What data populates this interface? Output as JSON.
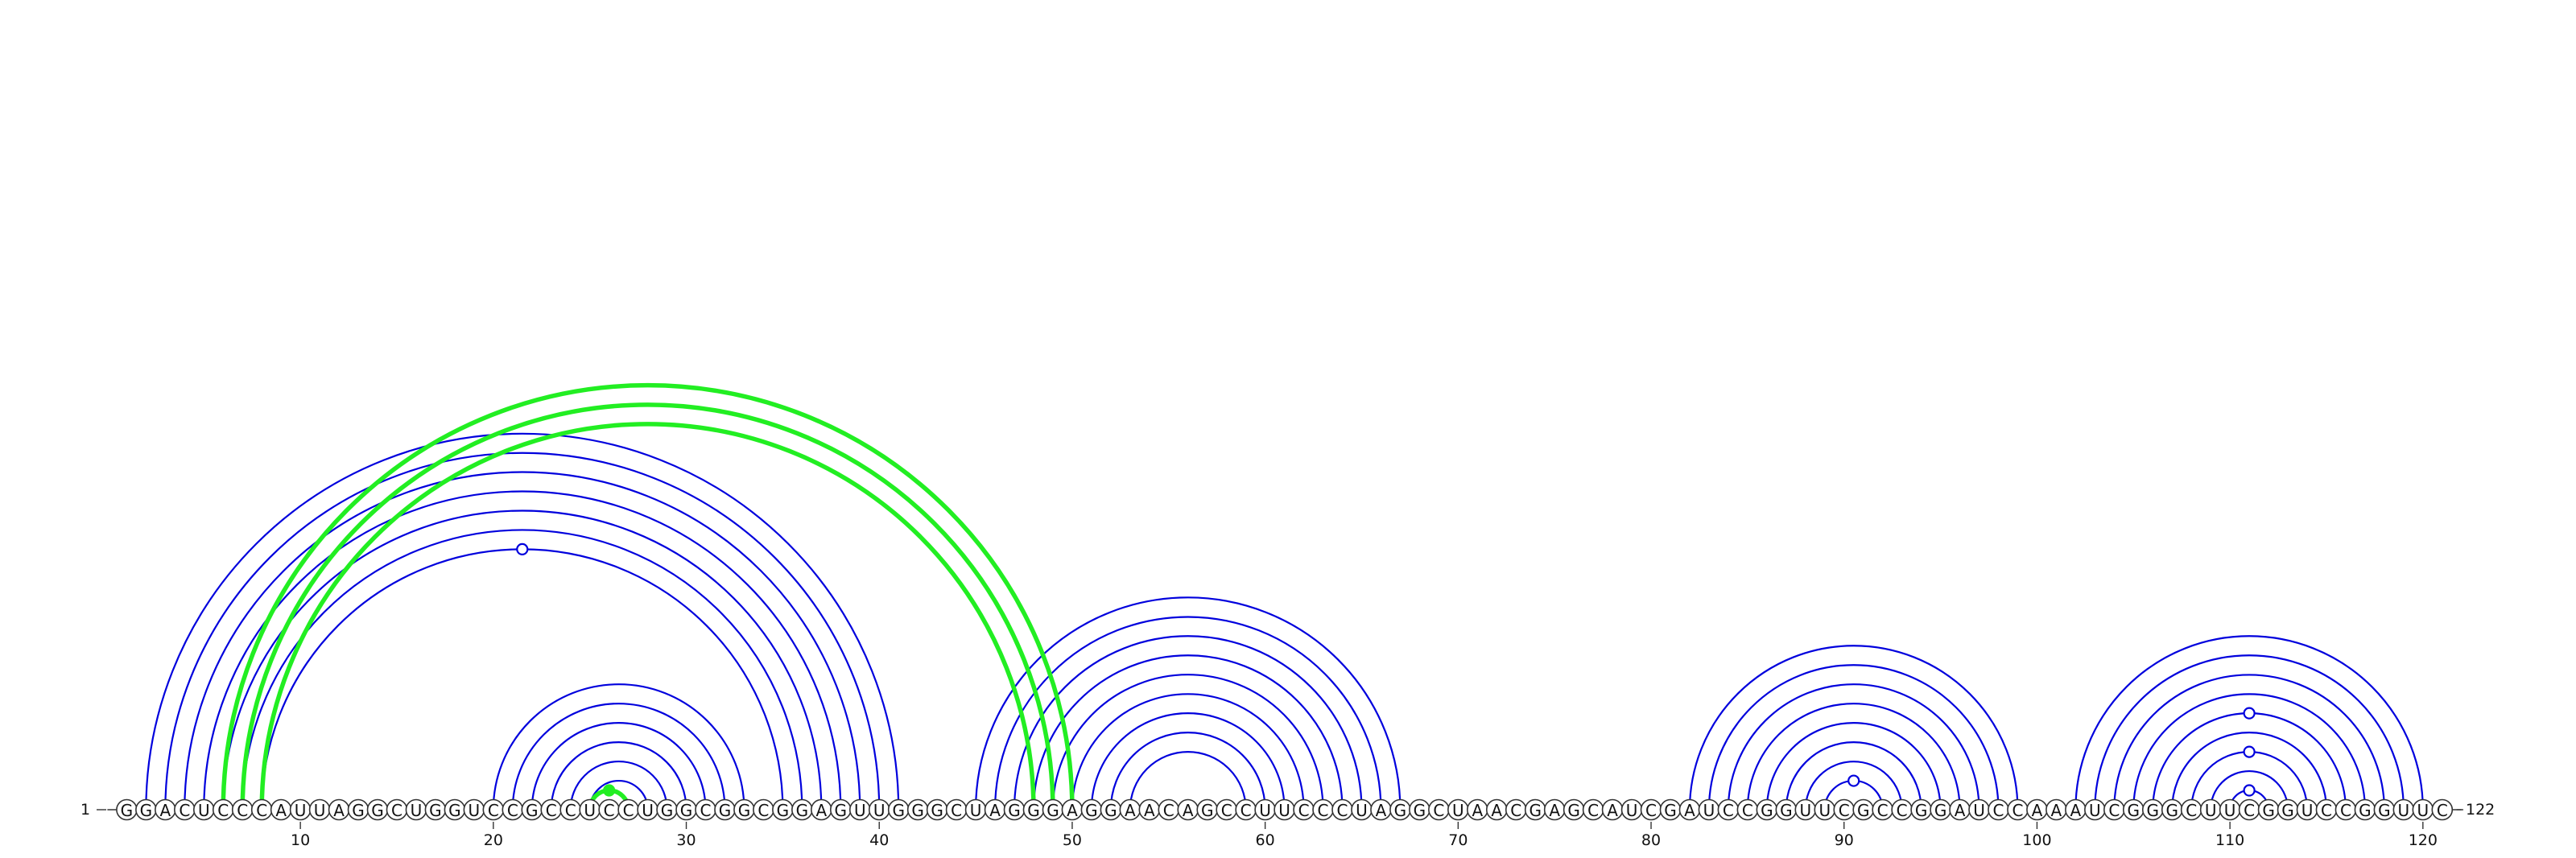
{
  "sequence": "GGACUCCCAUUAGGCUGGUCCGCCUCCUGGCGGCGGAGUUGGGCUAGGGAGGAACAGCCUUCCCUAGGCUAACGAGCAUCGAUCCGGUUCGCCGGAUCCAAAUCGGGCUUCGGUCCGGUUC",
  "start_label": "1",
  "end_label": "122",
  "position_labels": [
    "10",
    "20",
    "30",
    "40",
    "50",
    "60",
    "70",
    "80",
    "90",
    "100",
    "110",
    "120"
  ],
  "colors": {
    "base_pair_arc": "#0000dd",
    "pseudoknot_arc": "#22ee22",
    "circle_stroke": "#333333"
  },
  "base_pairs": [
    [
      2,
      41
    ],
    [
      3,
      40
    ],
    [
      4,
      39
    ],
    [
      5,
      38
    ],
    [
      6,
      37
    ],
    [
      7,
      36
    ],
    [
      8,
      35
    ],
    [
      20,
      33
    ],
    [
      21,
      32
    ],
    [
      22,
      31
    ],
    [
      23,
      30
    ],
    [
      24,
      29
    ],
    [
      25,
      28
    ],
    [
      45,
      67
    ],
    [
      46,
      66
    ],
    [
      47,
      65
    ],
    [
      48,
      64
    ],
    [
      49,
      63
    ],
    [
      50,
      62
    ],
    [
      51,
      61
    ],
    [
      52,
      60
    ],
    [
      53,
      59
    ],
    [
      82,
      99
    ],
    [
      83,
      98
    ],
    [
      84,
      97
    ],
    [
      85,
      96
    ],
    [
      86,
      95
    ],
    [
      87,
      94
    ],
    [
      88,
      93
    ],
    [
      89,
      92
    ],
    [
      102,
      120
    ],
    [
      103,
      119
    ],
    [
      104,
      118
    ],
    [
      105,
      117
    ],
    [
      106,
      116
    ],
    [
      107,
      115
    ],
    [
      108,
      114
    ],
    [
      109,
      113
    ],
    [
      110,
      112
    ]
  ],
  "pseudoknot_pairs": [
    [
      6,
      50
    ],
    [
      7,
      49
    ],
    [
      8,
      48
    ],
    [
      25,
      27
    ]
  ],
  "markers": [
    {
      "i": 8,
      "j": 35,
      "filled": false
    },
    {
      "i": 89,
      "j": 92,
      "filled": false
    },
    {
      "i": 110,
      "j": 112,
      "filled": false
    },
    {
      "i": 106,
      "j": 116,
      "filled": false
    },
    {
      "i": 108,
      "j": 114,
      "filled": false
    },
    {
      "i": 25,
      "j": 27,
      "filled": true
    }
  ]
}
